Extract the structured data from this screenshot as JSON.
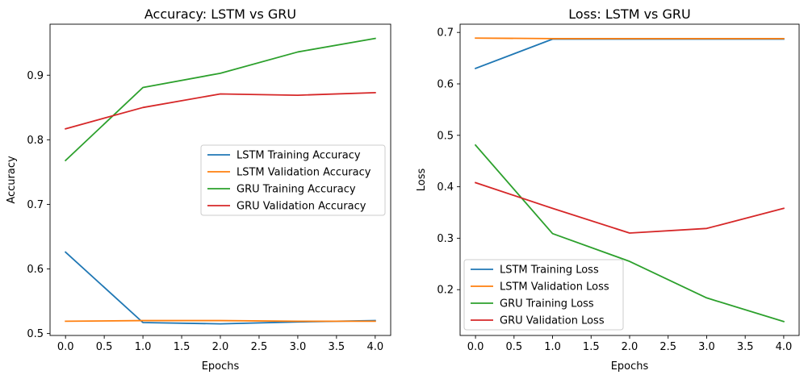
{
  "chart_data": [
    {
      "type": "line",
      "title": "Accuracy: LSTM vs GRU",
      "xlabel": "Epochs",
      "ylabel": "Accuracy",
      "x": [
        0,
        1,
        2,
        3,
        4
      ],
      "xlim": [
        -0.2,
        4.2
      ],
      "ylim": [
        0.497,
        0.979
      ],
      "xticks": [
        0.0,
        0.5,
        1.0,
        1.5,
        2.0,
        2.5,
        3.0,
        3.5,
        4.0
      ],
      "xtick_labels": [
        "0.0",
        "0.5",
        "1.0",
        "1.5",
        "2.0",
        "2.5",
        "3.0",
        "3.5",
        "4.0"
      ],
      "yticks": [
        0.5,
        0.6,
        0.7,
        0.8,
        0.9
      ],
      "ytick_labels": [
        "0.5",
        "0.6",
        "0.7",
        "0.8",
        "0.9"
      ],
      "grid": false,
      "legend_position": "center-right",
      "series": [
        {
          "name": "LSTM Training Accuracy",
          "color": "#1f77b4",
          "values": [
            0.626,
            0.517,
            0.515,
            0.518,
            0.52
          ]
        },
        {
          "name": "LSTM Validation Accuracy",
          "color": "#ff7f0e",
          "values": [
            0.519,
            0.52,
            0.52,
            0.519,
            0.519
          ]
        },
        {
          "name": "GRU Training Accuracy",
          "color": "#2ca02c",
          "values": [
            0.768,
            0.881,
            0.903,
            0.936,
            0.957
          ]
        },
        {
          "name": "GRU Validation Accuracy",
          "color": "#d62728",
          "values": [
            0.817,
            0.85,
            0.871,
            0.869,
            0.873
          ]
        }
      ]
    },
    {
      "type": "line",
      "title": "Loss: LSTM vs GRU",
      "xlabel": "Epochs",
      "ylabel": "Loss",
      "x": [
        0,
        1,
        2,
        3,
        4
      ],
      "xlim": [
        -0.2,
        4.2
      ],
      "ylim": [
        0.111,
        0.716
      ],
      "xticks": [
        0.0,
        0.5,
        1.0,
        1.5,
        2.0,
        2.5,
        3.0,
        3.5,
        4.0
      ],
      "xtick_labels": [
        "0.0",
        "0.5",
        "1.0",
        "1.5",
        "2.0",
        "2.5",
        "3.0",
        "3.5",
        "4.0"
      ],
      "yticks": [
        0.2,
        0.3,
        0.4,
        0.5,
        0.6,
        0.7
      ],
      "ytick_labels": [
        "0.2",
        "0.3",
        "0.4",
        "0.5",
        "0.6",
        "0.7"
      ],
      "grid": false,
      "legend_position": "lower-left",
      "series": [
        {
          "name": "LSTM Training Loss",
          "color": "#1f77b4",
          "values": [
            0.63,
            0.687,
            0.687,
            0.687,
            0.687
          ]
        },
        {
          "name": "LSTM Validation Loss",
          "color": "#ff7f0e",
          "values": [
            0.689,
            0.688,
            0.688,
            0.688,
            0.688
          ]
        },
        {
          "name": "GRU Training Loss",
          "color": "#2ca02c",
          "values": [
            0.481,
            0.309,
            0.255,
            0.184,
            0.138
          ]
        },
        {
          "name": "GRU Validation Loss",
          "color": "#d62728",
          "values": [
            0.408,
            0.358,
            0.31,
            0.319,
            0.358
          ]
        }
      ]
    }
  ]
}
